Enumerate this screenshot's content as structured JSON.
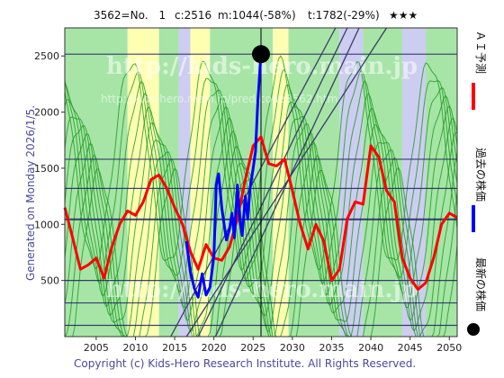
{
  "header": {
    "code": "3562=No.　1",
    "current": "c:2516",
    "min": "m:1044(-58%)",
    "target": "t:1782(-29%)",
    "stars": "★★★"
  },
  "side_label": "Generated on Monday 2026/1/5.",
  "copyright": "Copyright (c) Kids-Hero Research Institute. All Rights Reserved.",
  "watermark": {
    "main": "http://kids-hero.main.jp",
    "sub": "http://kids-hero.main.jp/pred/code3562.htm"
  },
  "legend": {
    "ai_forecast": "ＡＩ予測",
    "past_price": "過去の株価",
    "latest_price": "最新の株価"
  },
  "colors": {
    "forecast": "#ff0000",
    "past": "#0000ff",
    "latest": "#000000",
    "band_green": "#5ecf5e",
    "band_yellow": "#ffffaa",
    "band_blue": "#c8c8f0",
    "hline": "#202060"
  },
  "chart_data": {
    "type": "line",
    "xlim": [
      2001,
      2051
    ],
    "ylim": [
      0,
      2750
    ],
    "x_ticks": [
      2005,
      2010,
      2015,
      2020,
      2025,
      2030,
      2035,
      2040,
      2045,
      2050
    ],
    "y_ticks": [
      500,
      1000,
      1500,
      2000,
      2500
    ],
    "reference_levels": [
      100,
      300,
      500,
      1044,
      1320,
      1580,
      2516
    ],
    "latest_point": {
      "x": 2026.0,
      "y": 2516
    },
    "forecast": {
      "x": [
        2001,
        2002,
        2003,
        2004,
        2005,
        2006,
        2007,
        2008,
        2009,
        2010,
        2011,
        2012,
        2013,
        2014,
        2015,
        2016,
        2017,
        2018,
        2019,
        2020,
        2021,
        2022,
        2023,
        2024,
        2025,
        2026,
        2027,
        2028,
        2029,
        2030,
        2031,
        2032,
        2033,
        2034,
        2035,
        2036,
        2037,
        2038,
        2039,
        2040,
        2041,
        2042,
        2043,
        2044,
        2045,
        2046,
        2047,
        2048,
        2049,
        2050,
        2051
      ],
      "y": [
        1150,
        880,
        600,
        640,
        700,
        520,
        800,
        1000,
        1120,
        1080,
        1200,
        1400,
        1440,
        1320,
        1150,
        1000,
        760,
        600,
        820,
        700,
        680,
        800,
        1050,
        1400,
        1700,
        1780,
        1540,
        1520,
        1580,
        1300,
        1000,
        780,
        1000,
        850,
        500,
        600,
        1050,
        1200,
        1180,
        1700,
        1600,
        1300,
        1200,
        700,
        520,
        420,
        480,
        700,
        1000,
        1100,
        1060
      ]
    },
    "past": {
      "x": [
        2016.5,
        2017.0,
        2017.5,
        2018.0,
        2018.5,
        2019.0,
        2019.5,
        2020.0,
        2020.3,
        2020.6,
        2021.0,
        2021.3,
        2021.6,
        2022.0,
        2022.3,
        2022.6,
        2023.0,
        2023.3,
        2023.6,
        2024.0,
        2024.3,
        2024.6,
        2025.0,
        2025.3,
        2025.6,
        2026.0
      ],
      "y": [
        850,
        580,
        430,
        350,
        560,
        370,
        440,
        720,
        1350,
        1450,
        1150,
        1000,
        860,
        960,
        1100,
        880,
        1350,
        1050,
        900,
        1250,
        1050,
        1320,
        1500,
        1650,
        2100,
        2516
      ]
    }
  }
}
